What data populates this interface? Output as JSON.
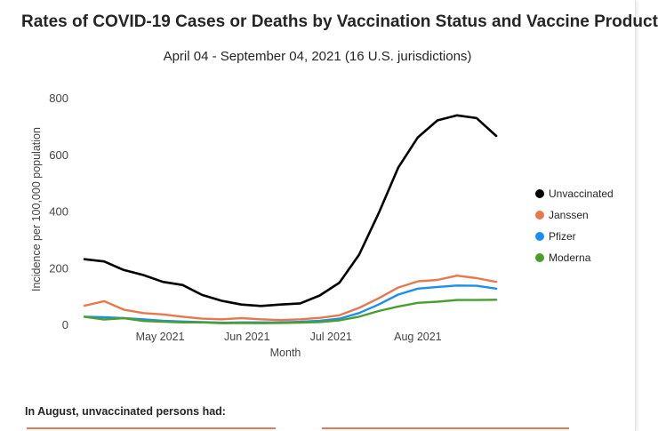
{
  "header": {
    "title": "Rates of COVID-19 Cases or Deaths by Vaccination Status and Vaccine Product",
    "subtitle": "April 04 - September 04, 2021 (16 U.S. jurisdictions)"
  },
  "footer": {
    "text": "In August, unvaccinated persons had:"
  },
  "colors": {
    "Unvaccinated": "#000000",
    "Janssen": "#e8784c",
    "Pfizer": "#1b8ff0",
    "Moderna": "#4a9e2d",
    "accent_strip": "#e07b55"
  },
  "chart_data": {
    "type": "line",
    "title": "",
    "xlabel": "Month",
    "ylabel": "Incidence per 100,000 population",
    "ylim": [
      0,
      800
    ],
    "yticks": [
      0,
      200,
      400,
      600,
      800
    ],
    "xlim": [
      "2021-04-04",
      "2021-09-04"
    ],
    "xticks": [
      {
        "label": "May 2021",
        "date": "2021-05-01"
      },
      {
        "label": "Jun 2021",
        "date": "2021-06-01"
      },
      {
        "label": "Jul 2021",
        "date": "2021-07-01"
      },
      {
        "label": "Aug 2021",
        "date": "2021-08-01"
      }
    ],
    "grid": false,
    "legend_position": "right",
    "x": [
      "2021-04-04",
      "2021-04-11",
      "2021-04-18",
      "2021-04-25",
      "2021-05-02",
      "2021-05-09",
      "2021-05-16",
      "2021-05-23",
      "2021-05-30",
      "2021-06-06",
      "2021-06-13",
      "2021-06-20",
      "2021-06-27",
      "2021-07-04",
      "2021-07-11",
      "2021-07-18",
      "2021-07-25",
      "2021-08-01",
      "2021-08-08",
      "2021-08-15",
      "2021-08-22",
      "2021-08-29"
    ],
    "series": [
      {
        "name": "Unvaccinated",
        "values": [
          230,
          222,
          192,
          174,
          150,
          139,
          104,
          83,
          70,
          65,
          70,
          74,
          102,
          147,
          245,
          392,
          553,
          660,
          720,
          738,
          728,
          665
        ]
      },
      {
        "name": "Janssen",
        "values": [
          66,
          82,
          52,
          40,
          35,
          27,
          20,
          18,
          22,
          18,
          15,
          18,
          23,
          32,
          58,
          92,
          130,
          152,
          157,
          172,
          163,
          150
        ]
      },
      {
        "name": "Pfizer",
        "values": [
          27,
          25,
          22,
          18,
          13,
          10,
          8,
          6,
          7,
          7,
          7,
          9,
          13,
          20,
          40,
          70,
          105,
          126,
          132,
          137,
          136,
          126
        ]
      },
      {
        "name": "Moderna",
        "values": [
          27,
          17,
          22,
          12,
          9,
          7,
          7,
          4,
          5,
          4,
          5,
          6,
          8,
          14,
          27,
          47,
          63,
          76,
          80,
          86,
          86,
          87
        ]
      }
    ]
  }
}
